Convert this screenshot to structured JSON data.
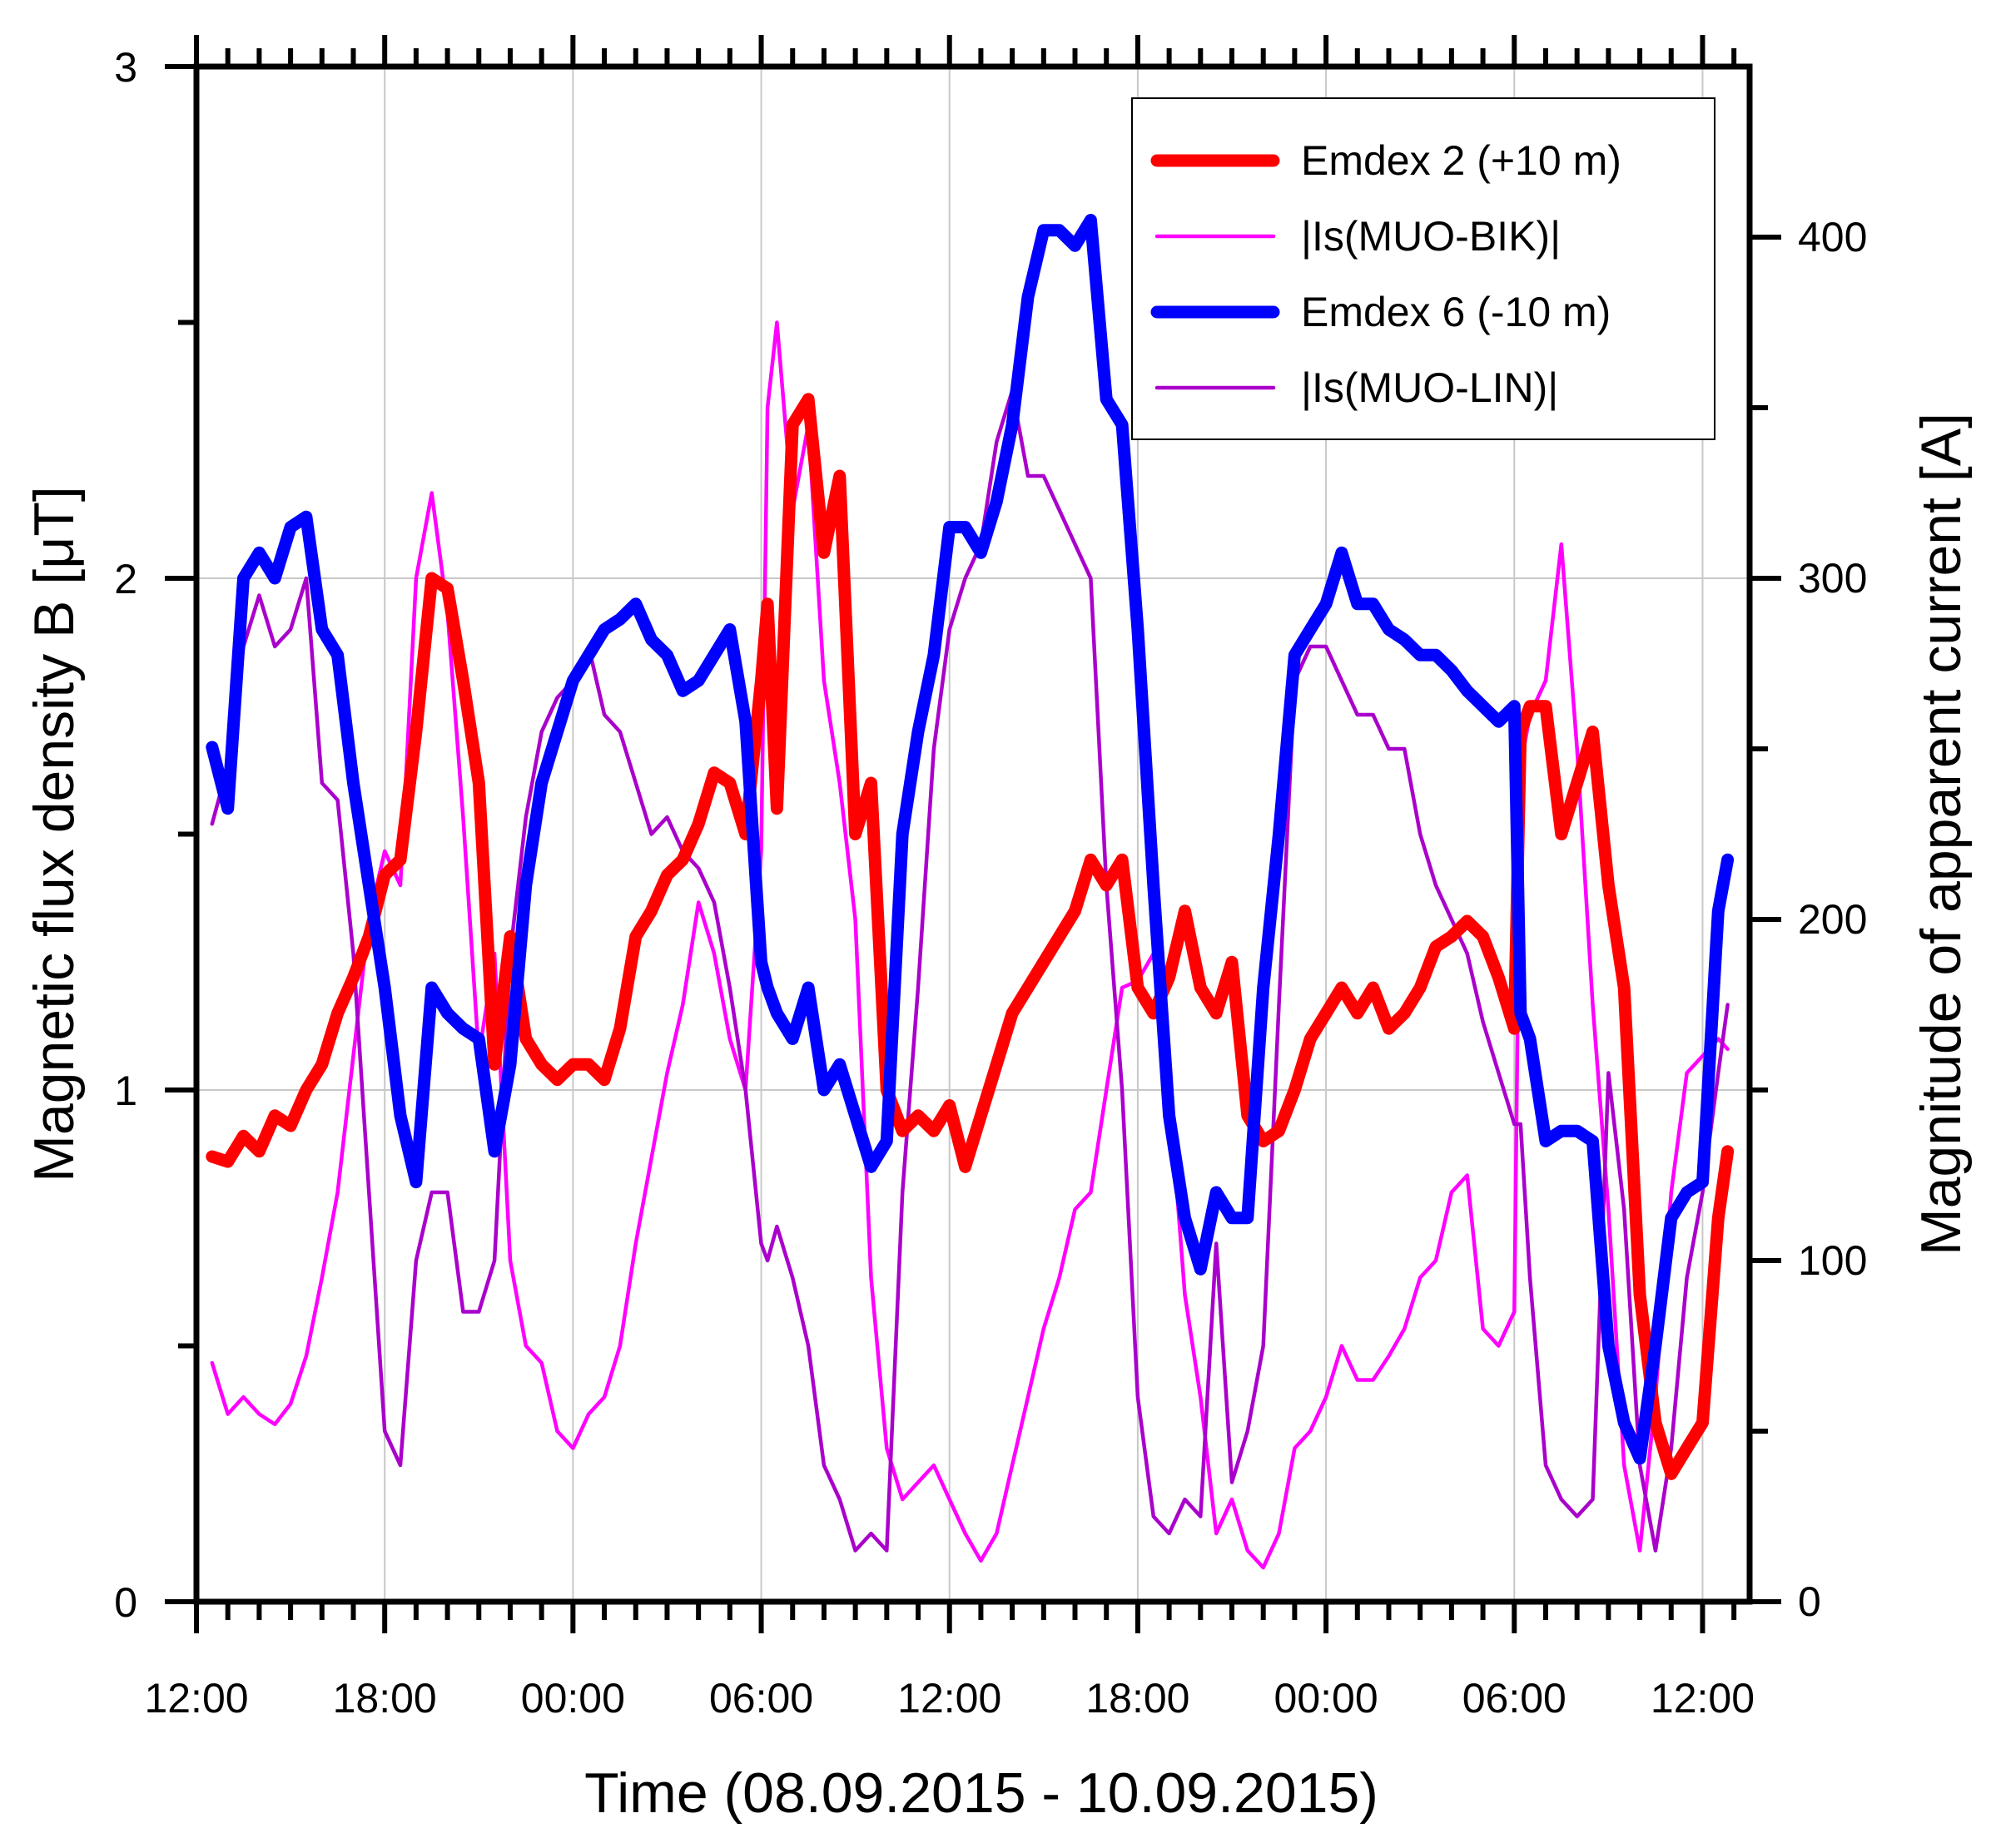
{
  "chart_data": {
    "type": "line",
    "title": "",
    "xlabel": "Time (08.09.2015 - 10.09.2015)",
    "ylabel_left": "Magnetic flux density B [μT]",
    "ylabel_right": "Magnitude of apparent current [A]",
    "x_unit": "hours since 08.09.2015 12:00",
    "xlim": [
      0,
      49.5
    ],
    "ylim_left": [
      0,
      3
    ],
    "ylim_right": [
      0,
      450
    ],
    "x_ticks": [
      {
        "value": 0,
        "label": "12:00"
      },
      {
        "value": 6,
        "label": "18:00"
      },
      {
        "value": 12,
        "label": "00:00"
      },
      {
        "value": 18,
        "label": "06:00"
      },
      {
        "value": 24,
        "label": "12:00"
      },
      {
        "value": 30,
        "label": "18:00"
      },
      {
        "value": 36,
        "label": "00:00"
      },
      {
        "value": 42,
        "label": "06:00"
      },
      {
        "value": 48,
        "label": "12:00"
      }
    ],
    "y_left_ticks": [
      {
        "value": 0,
        "label": "0"
      },
      {
        "value": 1,
        "label": "1"
      },
      {
        "value": 2,
        "label": "2"
      },
      {
        "value": 3,
        "label": "3"
      }
    ],
    "y_right_ticks": [
      {
        "value": 0,
        "label": "0"
      },
      {
        "value": 100,
        "label": "100"
      },
      {
        "value": 200,
        "label": "200"
      },
      {
        "value": 300,
        "label": "300"
      },
      {
        "value": 400,
        "label": "400"
      }
    ],
    "grid": true,
    "legend_position": "top-right",
    "series": [
      {
        "name": "Emdex 2 (+10 m)",
        "axis": "left",
        "color": "#ff0000",
        "weight": "thick",
        "x": [
          0.5,
          1,
          1.5,
          2,
          2.5,
          3,
          3.5,
          4,
          4.5,
          5,
          5.5,
          6,
          6.5,
          7,
          7.5,
          8,
          8.5,
          9,
          9.5,
          10,
          10.5,
          11,
          11.5,
          12,
          12.5,
          13,
          13.5,
          14,
          14.5,
          15,
          15.5,
          16,
          16.5,
          17,
          17.5,
          18,
          18.2,
          18.5,
          19,
          19.5,
          20,
          20.5,
          21,
          21.5,
          22,
          22.5,
          23,
          23.5,
          24,
          24.5,
          25,
          25.5,
          26,
          26.5,
          27,
          27.5,
          28,
          28.5,
          29,
          29.5,
          30,
          30.5,
          31,
          31.5,
          32,
          32.5,
          33,
          33.5,
          34,
          34.5,
          35,
          35.5,
          36,
          36.5,
          37,
          37.5,
          38,
          38.5,
          39,
          39.5,
          40,
          40.5,
          41,
          41.5,
          42,
          42.2,
          42.5,
          43,
          43.5,
          44,
          44.5,
          45,
          45.5,
          46,
          46.5,
          47,
          47.5,
          48,
          48.5,
          48.8
        ],
        "values": [
          0.87,
          0.86,
          0.91,
          0.88,
          0.95,
          0.93,
          1.0,
          1.05,
          1.15,
          1.22,
          1.3,
          1.42,
          1.45,
          1.7,
          2.0,
          1.98,
          1.8,
          1.6,
          1.05,
          1.3,
          1.1,
          1.05,
          1.02,
          1.05,
          1.05,
          1.02,
          1.12,
          1.3,
          1.35,
          1.42,
          1.45,
          1.52,
          1.62,
          1.6,
          1.5,
          1.8,
          1.95,
          1.55,
          2.3,
          2.35,
          2.05,
          2.2,
          1.5,
          1.6,
          1.0,
          0.92,
          0.95,
          0.92,
          0.97,
          0.85,
          0.95,
          1.05,
          1.15,
          1.2,
          1.25,
          1.3,
          1.35,
          1.45,
          1.4,
          1.45,
          1.2,
          1.15,
          1.22,
          1.35,
          1.2,
          1.15,
          1.25,
          0.95,
          0.9,
          0.92,
          1.0,
          1.1,
          1.15,
          1.2,
          1.15,
          1.2,
          1.12,
          1.15,
          1.2,
          1.28,
          1.3,
          1.33,
          1.3,
          1.22,
          1.12,
          1.7,
          1.75,
          1.75,
          1.5,
          1.6,
          1.7,
          1.4,
          1.2,
          0.6,
          0.35,
          0.25,
          0.3,
          0.35,
          0.75,
          0.88
        ]
      },
      {
        "name": "|Is(MUO-BIK)|",
        "axis": "right",
        "color": "#ff00ff",
        "weight": "thin",
        "x": [
          0.5,
          1,
          1.5,
          2,
          2.5,
          3,
          3.5,
          4,
          4.5,
          5,
          5.5,
          6,
          6.5,
          7,
          7.5,
          8,
          8.5,
          9,
          9.5,
          10,
          10.5,
          11,
          11.5,
          12,
          12.5,
          13,
          13.5,
          14,
          14.5,
          15,
          15.5,
          16,
          16.5,
          17,
          17.5,
          18,
          18.2,
          18.5,
          19,
          19.5,
          20,
          20.5,
          21,
          21.5,
          22,
          22.5,
          23,
          23.5,
          24,
          24.5,
          25,
          25.5,
          26,
          26.5,
          27,
          27.5,
          28,
          28.5,
          29,
          29.5,
          30,
          30.5,
          31,
          31.5,
          32,
          32.5,
          33,
          33.5,
          34,
          34.5,
          35,
          35.5,
          36,
          36.5,
          37,
          37.5,
          38,
          38.5,
          39,
          39.5,
          40,
          40.5,
          41,
          41.5,
          42,
          42.2,
          42.5,
          43,
          43.5,
          44,
          44.5,
          45,
          45.5,
          46,
          46.5,
          47,
          47.5,
          48,
          48.5,
          48.8
        ],
        "values": [
          70,
          55,
          60,
          55,
          52,
          58,
          72,
          95,
          120,
          160,
          200,
          220,
          210,
          300,
          325,
          290,
          230,
          160,
          190,
          100,
          75,
          70,
          50,
          45,
          55,
          60,
          75,
          105,
          130,
          155,
          175,
          205,
          190,
          165,
          150,
          220,
          350,
          375,
          320,
          345,
          270,
          240,
          200,
          95,
          45,
          30,
          35,
          40,
          30,
          20,
          12,
          20,
          40,
          60,
          80,
          95,
          115,
          120,
          150,
          180,
          182,
          190,
          150,
          90,
          60,
          20,
          30,
          15,
          10,
          20,
          45,
          50,
          60,
          75,
          65,
          65,
          72,
          80,
          95,
          100,
          120,
          125,
          80,
          75,
          85,
          245,
          260,
          270,
          310,
          250,
          175,
          115,
          40,
          15,
          60,
          120,
          155,
          160,
          165,
          162
        ]
      },
      {
        "name": "Emdex 6 (-10 m)",
        "axis": "left",
        "color": "#0000ff",
        "weight": "thick",
        "x": [
          0.5,
          1,
          1.5,
          2,
          2.5,
          3,
          3.5,
          4,
          4.5,
          5,
          5.5,
          6,
          6.5,
          7,
          7.5,
          8,
          8.5,
          9,
          9.5,
          10,
          10.5,
          11,
          11.5,
          12,
          12.5,
          13,
          13.5,
          14,
          14.5,
          15,
          15.5,
          16,
          16.5,
          17,
          17.5,
          18,
          18.2,
          18.5,
          19,
          19.5,
          20,
          20.5,
          21,
          21.5,
          22,
          22.5,
          23,
          23.5,
          24,
          24.5,
          25,
          25.5,
          26,
          26.5,
          27,
          27.5,
          28,
          28.5,
          29,
          29.5,
          30,
          30.5,
          31,
          31.5,
          32,
          32.5,
          33,
          33.5,
          34,
          34.5,
          35,
          35.5,
          36,
          36.5,
          37,
          37.5,
          38,
          38.5,
          39,
          39.5,
          40,
          40.5,
          41,
          41.5,
          42,
          42.2,
          42.5,
          43,
          43.5,
          44,
          44.5,
          45,
          45.5,
          46,
          46.5,
          47,
          47.5,
          48,
          48.5,
          48.8
        ],
        "values": [
          1.67,
          1.55,
          2.0,
          2.05,
          2.0,
          2.1,
          2.12,
          1.9,
          1.85,
          1.6,
          1.4,
          1.2,
          0.95,
          0.82,
          1.2,
          1.15,
          1.12,
          1.1,
          0.88,
          1.05,
          1.4,
          1.6,
          1.7,
          1.8,
          1.85,
          1.9,
          1.92,
          1.95,
          1.88,
          1.85,
          1.78,
          1.8,
          1.85,
          1.9,
          1.72,
          1.25,
          1.2,
          1.15,
          1.1,
          1.2,
          1.0,
          1.05,
          0.95,
          0.85,
          0.9,
          1.5,
          1.7,
          1.85,
          2.1,
          2.1,
          2.05,
          2.15,
          2.3,
          2.55,
          2.68,
          2.68,
          2.65,
          2.7,
          2.35,
          2.3,
          1.9,
          1.4,
          0.95,
          0.75,
          0.65,
          0.8,
          0.75,
          0.75,
          1.2,
          1.5,
          1.85,
          1.9,
          1.95,
          2.05,
          1.95,
          1.95,
          1.9,
          1.88,
          1.85,
          1.85,
          1.82,
          1.78,
          1.75,
          1.72,
          1.75,
          1.15,
          1.1,
          0.9,
          0.92,
          0.92,
          0.9,
          0.5,
          0.35,
          0.28,
          0.5,
          0.75,
          0.8,
          0.82,
          1.35,
          1.45
        ]
      },
      {
        "name": "|Is(MUO-LIN)|",
        "axis": "right",
        "color": "#aa00cc",
        "weight": "thin",
        "x": [
          0.5,
          1,
          1.5,
          2,
          2.5,
          3,
          3.5,
          4,
          4.5,
          5,
          5.5,
          6,
          6.5,
          7,
          7.5,
          8,
          8.5,
          9,
          9.5,
          10,
          10.5,
          11,
          11.5,
          12,
          12.5,
          13,
          13.5,
          14,
          14.5,
          15,
          15.5,
          16,
          16.5,
          17,
          17.5,
          18,
          18.2,
          18.5,
          19,
          19.5,
          20,
          20.5,
          21,
          21.5,
          22,
          22.5,
          23,
          23.5,
          24,
          24.5,
          25,
          25.5,
          26,
          26.5,
          27,
          27.5,
          28,
          28.5,
          29,
          29.5,
          30,
          30.5,
          31,
          31.5,
          32,
          32.5,
          33,
          33.5,
          34,
          34.5,
          35,
          35.5,
          36,
          36.5,
          37,
          37.5,
          38,
          38.5,
          39,
          39.5,
          40,
          40.5,
          41,
          41.5,
          42,
          42.2,
          42.5,
          43,
          43.5,
          44,
          44.5,
          45,
          45.5,
          46,
          46.5,
          47,
          47.5,
          48,
          48.5,
          48.8
        ],
        "values": [
          228,
          245,
          280,
          295,
          280,
          285,
          300,
          240,
          235,
          190,
          120,
          50,
          40,
          100,
          120,
          120,
          85,
          85,
          100,
          190,
          230,
          255,
          265,
          270,
          280,
          260,
          255,
          240,
          225,
          230,
          220,
          215,
          205,
          180,
          150,
          105,
          100,
          110,
          95,
          75,
          40,
          30,
          15,
          20,
          15,
          120,
          180,
          250,
          285,
          300,
          310,
          340,
          355,
          330,
          330,
          320,
          310,
          300,
          210,
          150,
          60,
          25,
          20,
          30,
          25,
          105,
          35,
          50,
          75,
          175,
          270,
          280,
          280,
          270,
          260,
          260,
          250,
          250,
          225,
          210,
          200,
          190,
          170,
          155,
          140,
          140,
          95,
          40,
          30,
          25,
          30,
          155,
          115,
          40,
          15,
          45,
          95,
          120,
          155,
          175
        ]
      }
    ]
  }
}
